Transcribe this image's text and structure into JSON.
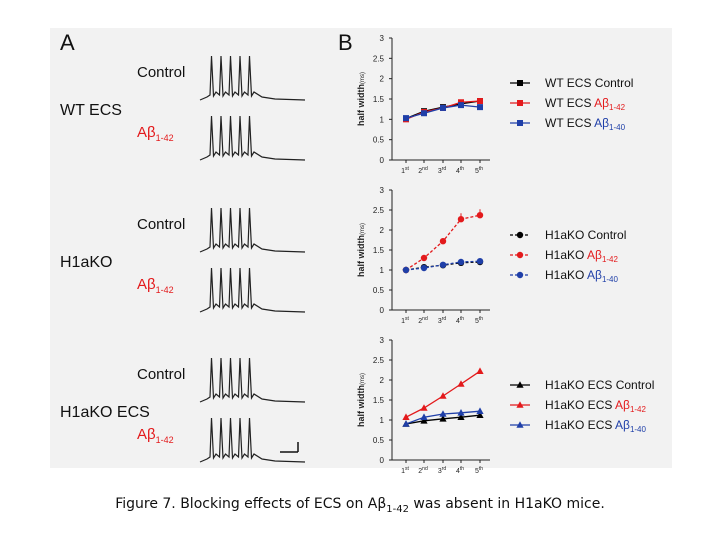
{
  "panels": {
    "a": "A",
    "b": "B"
  },
  "panel_a": {
    "groups": [
      {
        "label": "WT ECS",
        "traces": [
          {
            "label": "Control",
            "sub": ""
          },
          {
            "label": "Aβ",
            "sub": "1-42"
          }
        ]
      },
      {
        "label": "H1aKO",
        "traces": [
          {
            "label": "Control",
            "sub": ""
          },
          {
            "label": "Aβ",
            "sub": "1-42"
          }
        ]
      },
      {
        "label": "H1aKO ECS",
        "traces": [
          {
            "label": "Control",
            "sub": ""
          },
          {
            "label": "Aβ",
            "sub": "1-42"
          }
        ]
      }
    ]
  },
  "chart_data": [
    {
      "type": "line",
      "ylabel": "half width",
      "yunit": "(ms)",
      "ylim": [
        0,
        3
      ],
      "yticks": [
        "0",
        "0.5",
        "1",
        "1.5",
        "2",
        "2.5",
        "3"
      ],
      "categories": [
        "1st",
        "2nd",
        "3rd",
        "4th",
        "5th"
      ],
      "series": [
        {
          "name": "WT ECS Control",
          "name_main": "WT ECS Control",
          "name_sub": "",
          "color": "#000000",
          "marker": "square",
          "dash": false,
          "values": [
            1.02,
            1.2,
            1.3,
            1.38,
            1.45
          ]
        },
        {
          "name": "WT ECS Aβ1-42",
          "name_main": "WT ECS Aβ",
          "name_sub": "1-42",
          "color": "#e31a1c",
          "marker": "square",
          "dash": false,
          "values": [
            1.0,
            1.18,
            1.28,
            1.42,
            1.45
          ]
        },
        {
          "name": "WT ECS Aβ1-40",
          "name_main": "WT ECS Aβ",
          "name_sub": "1-40",
          "color": "#1f3fa8",
          "marker": "square",
          "dash": false,
          "values": [
            1.03,
            1.15,
            1.28,
            1.35,
            1.3
          ]
        }
      ]
    },
    {
      "type": "line",
      "ylabel": "half width",
      "yunit": "(ms)",
      "ylim": [
        0,
        3
      ],
      "yticks": [
        "0",
        "0.5",
        "1",
        "1.5",
        "2",
        "2.5",
        "3"
      ],
      "categories": [
        "1st",
        "2nd",
        "3rd",
        "4th",
        "5th"
      ],
      "series": [
        {
          "name": "H1aKO Control",
          "name_main": "H1aKO Control",
          "name_sub": "",
          "color": "#000000",
          "marker": "circle",
          "dash": true,
          "values": [
            1.0,
            1.07,
            1.12,
            1.18,
            1.2
          ]
        },
        {
          "name": "H1aKO Aβ1-42",
          "name_main": "H1aKO Aβ",
          "name_sub": "1-42",
          "color": "#e31a1c",
          "marker": "circle",
          "dash": true,
          "values": [
            1.0,
            1.3,
            1.72,
            2.27,
            2.37
          ]
        },
        {
          "name": "H1aKO Aβ1-40",
          "name_main": "H1aKO Aβ",
          "name_sub": "1-40",
          "color": "#1f3fa8",
          "marker": "circle",
          "dash": true,
          "values": [
            1.0,
            1.05,
            1.13,
            1.2,
            1.22
          ]
        }
      ]
    },
    {
      "type": "line",
      "ylabel": "half width",
      "yunit": "(ms)",
      "ylim": [
        0,
        3
      ],
      "yticks": [
        "0",
        "0.5",
        "1",
        "1.5",
        "2",
        "2.5",
        "3"
      ],
      "categories": [
        "1st",
        "2nd",
        "3rd",
        "4th",
        "5th"
      ],
      "series": [
        {
          "name": "H1aKO ECS Control",
          "name_main": "H1aKO ECS Control",
          "name_sub": "",
          "color": "#000000",
          "marker": "triangle",
          "dash": false,
          "values": [
            0.9,
            0.98,
            1.03,
            1.07,
            1.12
          ]
        },
        {
          "name": "H1aKO ECS Aβ1-42",
          "name_main": "H1aKO ECS Aβ",
          "name_sub": "1-42",
          "color": "#e31a1c",
          "marker": "triangle",
          "dash": false,
          "values": [
            1.07,
            1.3,
            1.6,
            1.9,
            2.22
          ]
        },
        {
          "name": "H1aKO ECS Aβ1-40",
          "name_main": "H1aKO ECS Aβ",
          "name_sub": "1-40",
          "color": "#1f3fa8",
          "marker": "triangle",
          "dash": false,
          "values": [
            0.9,
            1.07,
            1.15,
            1.18,
            1.22
          ]
        }
      ]
    }
  ],
  "caption": {
    "pre": "Figure 7. Blocking effects of ECS on Aβ",
    "sub": "1-42",
    "post": " was absent in H1aKO mice."
  }
}
